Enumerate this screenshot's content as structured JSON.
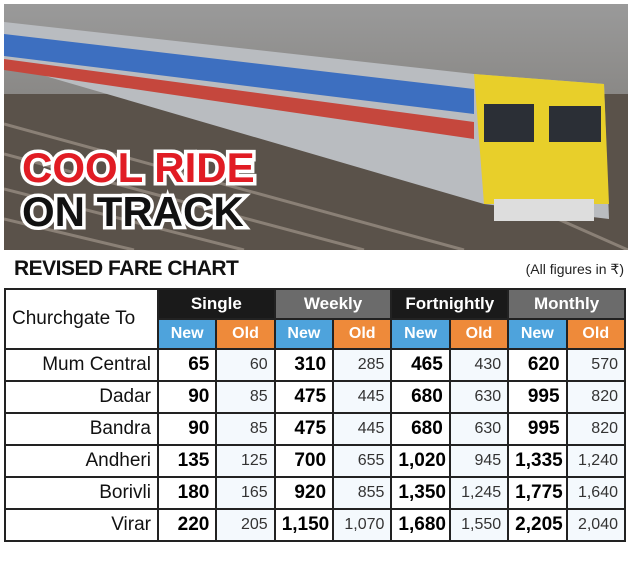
{
  "headline": [
    "COOL RIDE",
    "ON TRACK"
  ],
  "table_title": "REVISED FARE CHART",
  "note": "(All figures in ₹)",
  "table": {
    "corner": "Churchgate To",
    "groups": [
      {
        "name": "Single",
        "columns": [
          "New",
          "Old"
        ]
      },
      {
        "name": "Weekly",
        "columns": [
          "New",
          "Old"
        ]
      },
      {
        "name": "Fortnightly",
        "columns": [
          "New",
          "Old"
        ]
      },
      {
        "name": "Monthly",
        "columns": [
          "New",
          "Old"
        ]
      }
    ],
    "rows": [
      {
        "station": "Mum Central",
        "fares": [
          "65",
          "60",
          "310",
          "285",
          "465",
          "430",
          "620",
          "570"
        ]
      },
      {
        "station": "Dadar",
        "fares": [
          "90",
          "85",
          "475",
          "445",
          "680",
          "630",
          "995",
          "820"
        ]
      },
      {
        "station": "Bandra",
        "fares": [
          "90",
          "85",
          "475",
          "445",
          "680",
          "630",
          "995",
          "820"
        ]
      },
      {
        "station": "Andheri",
        "fares": [
          "135",
          "125",
          "700",
          "655",
          "1,020",
          "945",
          "1,335",
          "1,240"
        ]
      },
      {
        "station": "Borivli",
        "fares": [
          "180",
          "165",
          "920",
          "855",
          "1,350",
          "1,245",
          "1,775",
          "1,640"
        ]
      },
      {
        "station": "Virar",
        "fares": [
          "220",
          "205",
          "1,150",
          "1,070",
          "1,680",
          "1,550",
          "2,205",
          "2,040"
        ]
      }
    ]
  }
}
